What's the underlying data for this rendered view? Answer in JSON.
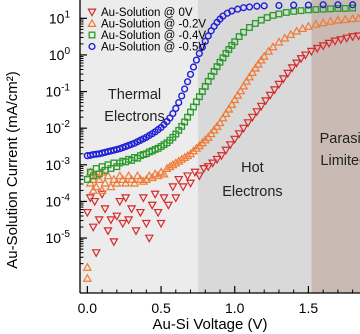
{
  "chart_data": {
    "type": "scatter",
    "xlabel": "Au-Si Voltage (V)",
    "ylabel": "Au-Solution Current (mA/cm²)",
    "xlim": [
      -0.05,
      1.85
    ],
    "ylim_log10": [
      -6.5,
      1.5
    ],
    "y_scale": "log",
    "x_ticks": [
      {
        "v": 0.0,
        "label": "0.0"
      },
      {
        "v": 0.5,
        "label": "0.5"
      },
      {
        "v": 1.0,
        "label": "1.0"
      },
      {
        "v": 1.5,
        "label": "1.5"
      }
    ],
    "y_ticks": [
      {
        "exp": 1,
        "label": "10",
        "sup": "1"
      },
      {
        "exp": 0,
        "label": "10",
        "sup": "0"
      },
      {
        "exp": -1,
        "label": "10",
        "sup": "-1"
      },
      {
        "exp": -2,
        "label": "10",
        "sup": "-2"
      },
      {
        "exp": -3,
        "label": "10",
        "sup": "-3"
      },
      {
        "exp": -4,
        "label": "10",
        "sup": "-4"
      },
      {
        "exp": -5,
        "label": "10",
        "sup": "-5"
      }
    ],
    "regions": [
      {
        "x0": -0.05,
        "x1": 0.75,
        "color": "#ececec",
        "label_lines": [
          "Thermal",
          "Electrons"
        ],
        "label_x": 0.32,
        "label_y_log10": [
          -1.2,
          -1.8
        ]
      },
      {
        "x0": 0.75,
        "x1": 1.52,
        "color": "#d9d9d9",
        "label_lines": [
          "Hot",
          "Electrons"
        ],
        "label_x": 1.12,
        "label_y_log10": [
          -3.2,
          -3.85
        ]
      },
      {
        "x0": 1.52,
        "x1": 1.85,
        "color": "#c9bbb3",
        "label_lines": [
          "Parasiti",
          "Limited"
        ],
        "label_x": 1.74,
        "label_y_log10": [
          -2.4,
          -3.0
        ]
      }
    ],
    "series": [
      {
        "name": "Au-Solution @ 0V",
        "marker": "triangle-down",
        "color": "#d42a2a",
        "points": [
          [
            0.0,
            -4.3
          ],
          [
            0.02,
            -3.9
          ],
          [
            0.04,
            -4.7
          ],
          [
            0.05,
            -4.0
          ],
          [
            0.06,
            -5.4
          ],
          [
            0.08,
            -4.5
          ],
          [
            0.1,
            -3.8
          ],
          [
            0.12,
            -4.2
          ],
          [
            0.14,
            -4.8
          ],
          [
            0.16,
            -4.5
          ],
          [
            0.18,
            -5.1
          ],
          [
            0.2,
            -4.4
          ],
          [
            0.22,
            -4.0
          ],
          [
            0.24,
            -4.6
          ],
          [
            0.26,
            -3.9
          ],
          [
            0.28,
            -4.5
          ],
          [
            0.3,
            -4.2
          ],
          [
            0.33,
            -4.8
          ],
          [
            0.36,
            -4.3
          ],
          [
            0.38,
            -3.9
          ],
          [
            0.4,
            -4.6
          ],
          [
            0.42,
            -5.0
          ],
          [
            0.44,
            -4.1
          ],
          [
            0.46,
            -3.8
          ],
          [
            0.48,
            -4.3
          ],
          [
            0.5,
            -4.6
          ],
          [
            0.52,
            -3.9
          ],
          [
            0.55,
            -4.1
          ],
          [
            0.58,
            -3.6
          ],
          [
            0.6,
            -3.9
          ],
          [
            0.62,
            -3.4
          ],
          [
            0.65,
            -3.6
          ],
          [
            0.68,
            -3.3
          ],
          [
            0.7,
            -3.5
          ],
          [
            0.73,
            -3.2
          ],
          [
            0.76,
            -3.3
          ],
          [
            0.79,
            -3.1
          ],
          [
            0.82,
            -3.05
          ],
          [
            0.85,
            -2.95
          ],
          [
            0.88,
            -2.85
          ],
          [
            0.91,
            -2.75
          ],
          [
            0.94,
            -2.6
          ],
          [
            0.97,
            -2.45
          ],
          [
            1.0,
            -2.3
          ],
          [
            1.03,
            -2.15
          ],
          [
            1.06,
            -2.0
          ],
          [
            1.09,
            -1.85
          ],
          [
            1.12,
            -1.7
          ],
          [
            1.15,
            -1.55
          ],
          [
            1.18,
            -1.4
          ],
          [
            1.21,
            -1.25
          ],
          [
            1.24,
            -1.1
          ],
          [
            1.27,
            -0.95
          ],
          [
            1.3,
            -0.8
          ],
          [
            1.33,
            -0.65
          ],
          [
            1.36,
            -0.5
          ],
          [
            1.39,
            -0.35
          ],
          [
            1.42,
            -0.22
          ],
          [
            1.45,
            -0.1
          ],
          [
            1.48,
            0.0
          ],
          [
            1.52,
            0.1
          ],
          [
            1.56,
            0.18
          ],
          [
            1.6,
            0.25
          ],
          [
            1.64,
            0.32
          ],
          [
            1.68,
            0.38
          ],
          [
            1.72,
            0.42
          ],
          [
            1.76,
            0.46
          ],
          [
            1.8,
            0.5
          ],
          [
            1.84,
            0.52
          ]
        ]
      },
      {
        "name": "Au-Solution @ -0.2V",
        "marker": "triangle-up",
        "color": "#f07a34",
        "points": [
          [
            0.0,
            -5.8
          ],
          [
            0.0,
            -6.1
          ],
          [
            0.02,
            -3.2
          ],
          [
            0.02,
            -3.5
          ],
          [
            0.04,
            -3.4
          ],
          [
            0.04,
            -3.7
          ],
          [
            0.06,
            -3.3
          ],
          [
            0.06,
            -3.6
          ],
          [
            0.08,
            -3.4
          ],
          [
            0.1,
            -3.2
          ],
          [
            0.1,
            -3.7
          ],
          [
            0.12,
            -3.5
          ],
          [
            0.14,
            -3.3
          ],
          [
            0.16,
            -3.6
          ],
          [
            0.18,
            -3.4
          ],
          [
            0.2,
            -3.5
          ],
          [
            0.22,
            -3.3
          ],
          [
            0.24,
            -3.4
          ],
          [
            0.26,
            -3.5
          ],
          [
            0.28,
            -3.3
          ],
          [
            0.3,
            -3.4
          ],
          [
            0.32,
            -3.5
          ],
          [
            0.34,
            -3.3
          ],
          [
            0.36,
            -3.4
          ],
          [
            0.38,
            -3.45
          ],
          [
            0.4,
            -3.4
          ],
          [
            0.42,
            -3.3
          ],
          [
            0.44,
            -3.35
          ],
          [
            0.46,
            -3.25
          ],
          [
            0.48,
            -3.3
          ],
          [
            0.5,
            -3.2
          ],
          [
            0.52,
            -3.25
          ],
          [
            0.54,
            -3.1
          ],
          [
            0.56,
            -3.05
          ],
          [
            0.58,
            -3.0
          ],
          [
            0.6,
            -2.95
          ],
          [
            0.62,
            -2.9
          ],
          [
            0.64,
            -2.85
          ],
          [
            0.66,
            -2.8
          ],
          [
            0.68,
            -2.75
          ],
          [
            0.7,
            -2.7
          ],
          [
            0.72,
            -2.62
          ],
          [
            0.74,
            -2.55
          ],
          [
            0.76,
            -2.48
          ],
          [
            0.78,
            -2.4
          ],
          [
            0.8,
            -2.32
          ],
          [
            0.82,
            -2.25
          ],
          [
            0.84,
            -2.15
          ],
          [
            0.86,
            -2.05
          ],
          [
            0.88,
            -1.95
          ],
          [
            0.9,
            -1.85
          ],
          [
            0.92,
            -1.72
          ],
          [
            0.94,
            -1.6
          ],
          [
            0.96,
            -1.48
          ],
          [
            0.98,
            -1.35
          ],
          [
            1.0,
            -1.22
          ],
          [
            1.02,
            -1.1
          ],
          [
            1.04,
            -0.98
          ],
          [
            1.06,
            -0.85
          ],
          [
            1.08,
            -0.72
          ],
          [
            1.1,
            -0.6
          ],
          [
            1.12,
            -0.48
          ],
          [
            1.14,
            -0.36
          ],
          [
            1.16,
            -0.25
          ],
          [
            1.18,
            -0.14
          ],
          [
            1.2,
            -0.04
          ],
          [
            1.23,
            0.1
          ],
          [
            1.26,
            0.22
          ],
          [
            1.3,
            0.35
          ],
          [
            1.34,
            0.46
          ],
          [
            1.38,
            0.56
          ],
          [
            1.42,
            0.65
          ],
          [
            1.46,
            0.72
          ],
          [
            1.5,
            0.78
          ],
          [
            1.55,
            0.84
          ],
          [
            1.6,
            0.88
          ],
          [
            1.65,
            0.92
          ],
          [
            1.7,
            0.95
          ],
          [
            1.75,
            0.97
          ],
          [
            1.8,
            0.99
          ],
          [
            1.84,
            1.0
          ]
        ]
      },
      {
        "name": "Au-Solution @ -0.4V",
        "marker": "square",
        "color": "#2a9a2a",
        "points": [
          [
            0.0,
            -3.4
          ],
          [
            0.02,
            -3.2
          ],
          [
            0.04,
            -3.3
          ],
          [
            0.06,
            -3.1
          ],
          [
            0.08,
            -3.25
          ],
          [
            0.1,
            -3.05
          ],
          [
            0.12,
            -3.15
          ],
          [
            0.14,
            -3.0
          ],
          [
            0.16,
            -3.1
          ],
          [
            0.18,
            -2.95
          ],
          [
            0.2,
            -3.05
          ],
          [
            0.22,
            -2.95
          ],
          [
            0.24,
            -2.9
          ],
          [
            0.26,
            -2.92
          ],
          [
            0.28,
            -2.85
          ],
          [
            0.3,
            -2.88
          ],
          [
            0.32,
            -2.8
          ],
          [
            0.34,
            -2.82
          ],
          [
            0.36,
            -2.75
          ],
          [
            0.38,
            -2.72
          ],
          [
            0.4,
            -2.7
          ],
          [
            0.42,
            -2.65
          ],
          [
            0.44,
            -2.62
          ],
          [
            0.46,
            -2.58
          ],
          [
            0.48,
            -2.55
          ],
          [
            0.5,
            -2.5
          ],
          [
            0.52,
            -2.45
          ],
          [
            0.54,
            -2.4
          ],
          [
            0.56,
            -2.33
          ],
          [
            0.58,
            -2.25
          ],
          [
            0.6,
            -2.16
          ],
          [
            0.62,
            -2.06
          ],
          [
            0.64,
            -1.95
          ],
          [
            0.66,
            -1.83
          ],
          [
            0.68,
            -1.7
          ],
          [
            0.7,
            -1.56
          ],
          [
            0.72,
            -1.42
          ],
          [
            0.74,
            -1.28
          ],
          [
            0.76,
            -1.14
          ],
          [
            0.78,
            -1.0
          ],
          [
            0.8,
            -0.86
          ],
          [
            0.82,
            -0.72
          ],
          [
            0.84,
            -0.58
          ],
          [
            0.86,
            -0.45
          ],
          [
            0.88,
            -0.32
          ],
          [
            0.9,
            -0.2
          ],
          [
            0.92,
            -0.08
          ],
          [
            0.94,
            0.04
          ],
          [
            0.96,
            0.15
          ],
          [
            0.98,
            0.26
          ],
          [
            1.0,
            0.36
          ],
          [
            1.03,
            0.5
          ],
          [
            1.06,
            0.62
          ],
          [
            1.1,
            0.75
          ],
          [
            1.14,
            0.86
          ],
          [
            1.18,
            0.95
          ],
          [
            1.22,
            1.02
          ],
          [
            1.26,
            1.08
          ],
          [
            1.3,
            1.12
          ],
          [
            1.35,
            1.16
          ],
          [
            1.4,
            1.19
          ],
          [
            1.45,
            1.21
          ],
          [
            1.5,
            1.23
          ],
          [
            1.55,
            1.24
          ],
          [
            1.6,
            1.25
          ],
          [
            1.65,
            1.26
          ],
          [
            1.7,
            1.27
          ],
          [
            1.75,
            1.27
          ],
          [
            1.8,
            1.28
          ]
        ]
      },
      {
        "name": "Au-Solution @ -0.5V",
        "marker": "circle",
        "color": "#1f1fd6",
        "points": [
          [
            0.0,
            -2.75
          ],
          [
            0.02,
            -2.74
          ],
          [
            0.04,
            -2.72
          ],
          [
            0.06,
            -2.71
          ],
          [
            0.08,
            -2.7
          ],
          [
            0.1,
            -2.68
          ],
          [
            0.12,
            -2.66
          ],
          [
            0.14,
            -2.64
          ],
          [
            0.16,
            -2.62
          ],
          [
            0.18,
            -2.6
          ],
          [
            0.2,
            -2.58
          ],
          [
            0.22,
            -2.56
          ],
          [
            0.24,
            -2.53
          ],
          [
            0.26,
            -2.5
          ],
          [
            0.28,
            -2.47
          ],
          [
            0.3,
            -2.44
          ],
          [
            0.32,
            -2.41
          ],
          [
            0.34,
            -2.37
          ],
          [
            0.36,
            -2.33
          ],
          [
            0.38,
            -2.29
          ],
          [
            0.4,
            -2.25
          ],
          [
            0.42,
            -2.2
          ],
          [
            0.44,
            -2.15
          ],
          [
            0.46,
            -2.1
          ],
          [
            0.48,
            -2.04
          ],
          [
            0.5,
            -1.98
          ],
          [
            0.52,
            -1.9
          ],
          [
            0.54,
            -1.82
          ],
          [
            0.56,
            -1.72
          ],
          [
            0.58,
            -1.6
          ],
          [
            0.6,
            -1.46
          ],
          [
            0.62,
            -1.3
          ],
          [
            0.64,
            -1.12
          ],
          [
            0.66,
            -0.93
          ],
          [
            0.68,
            -0.73
          ],
          [
            0.7,
            -0.53
          ],
          [
            0.72,
            -0.33
          ],
          [
            0.74,
            -0.14
          ],
          [
            0.76,
            0.04
          ],
          [
            0.78,
            0.21
          ],
          [
            0.8,
            0.37
          ],
          [
            0.82,
            0.52
          ],
          [
            0.84,
            0.66
          ],
          [
            0.86,
            0.78
          ],
          [
            0.88,
            0.89
          ],
          [
            0.9,
            0.98
          ],
          [
            0.92,
            1.06
          ],
          [
            0.95,
            1.14
          ],
          [
            0.98,
            1.2
          ],
          [
            1.02,
            1.25
          ],
          [
            1.06,
            1.29
          ],
          [
            1.1,
            1.31
          ],
          [
            1.15,
            1.33
          ],
          [
            1.2,
            1.34
          ],
          [
            1.3,
            1.35
          ],
          [
            1.4,
            1.36
          ],
          [
            1.5,
            1.36
          ],
          [
            1.6,
            1.37
          ],
          [
            1.7,
            1.37
          ],
          [
            1.8,
            1.37
          ]
        ]
      }
    ]
  }
}
